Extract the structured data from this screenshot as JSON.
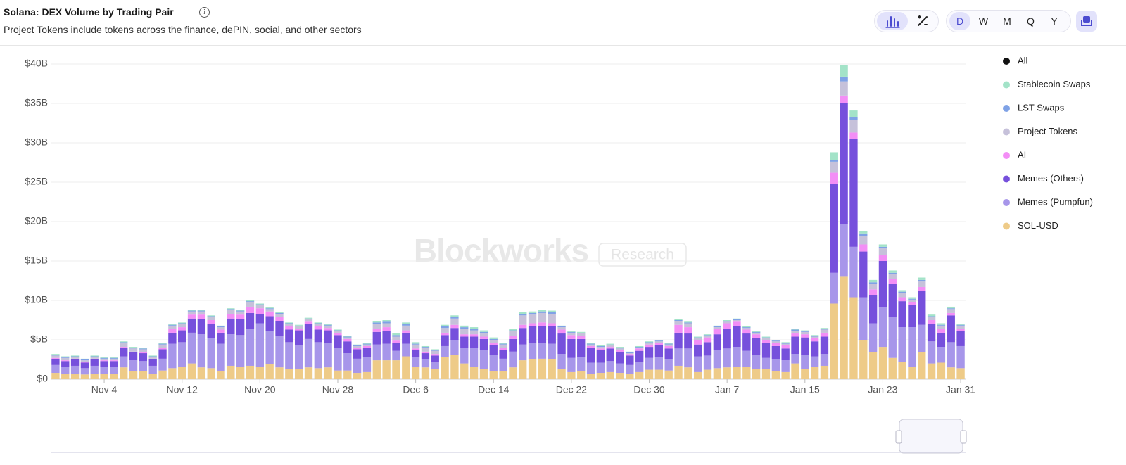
{
  "header": {
    "title": "Solana: DEX Volume by Trading Pair",
    "subtitle": "Project Tokens include tokens across the finance, dePIN, social, and other sectors"
  },
  "controls": {
    "periods": [
      "D",
      "W",
      "M",
      "Q",
      "Y"
    ],
    "selected_period": "D"
  },
  "chart_data": {
    "type": "stacked_bar",
    "watermark": "Blockworks",
    "watermark_tag": "Research",
    "total_legend": "All",
    "total_legend_color": "#111111",
    "categories": [
      null,
      null,
      null,
      null,
      null,
      "Nov 4",
      null,
      null,
      null,
      null,
      null,
      null,
      null,
      "Nov 12",
      null,
      null,
      null,
      null,
      null,
      null,
      null,
      "Nov 20",
      null,
      null,
      null,
      null,
      null,
      null,
      null,
      "Nov 28",
      null,
      null,
      null,
      null,
      null,
      null,
      null,
      "Dec 6",
      null,
      null,
      null,
      null,
      null,
      null,
      null,
      "Dec 14",
      null,
      null,
      null,
      null,
      null,
      null,
      null,
      "Dec 22",
      null,
      null,
      null,
      null,
      null,
      null,
      null,
      "Dec 30",
      null,
      null,
      null,
      null,
      null,
      null,
      null,
      "Jan 7",
      null,
      null,
      null,
      null,
      null,
      null,
      null,
      "Jan 15",
      null,
      null,
      null,
      null,
      null,
      null,
      null,
      "Jan 23",
      null,
      null,
      null,
      null,
      null,
      null,
      null,
      "Jan 31"
    ],
    "ylim": [
      0,
      40
    ],
    "yticks": [
      {
        "value": 0,
        "label": "$0"
      },
      {
        "value": 5,
        "label": "$5B"
      },
      {
        "value": 10,
        "label": "$10B"
      },
      {
        "value": 15,
        "label": "$15B"
      },
      {
        "value": 20,
        "label": "$20B"
      },
      {
        "value": 25,
        "label": "$25B"
      },
      {
        "value": 30,
        "label": "$30B"
      },
      {
        "value": 35,
        "label": "$35B"
      },
      {
        "value": 40,
        "label": "$40B"
      }
    ],
    "grid": true,
    "legend": "right",
    "series": [
      {
        "name": "Stablecoin Swaps",
        "color": "#a3e3c8",
        "values": [
          0.1,
          0.1,
          0.1,
          0.1,
          0.1,
          0.1,
          0.1,
          0.1,
          0.1,
          0.1,
          0.1,
          0.1,
          0.1,
          0.1,
          0.1,
          0.1,
          0.1,
          0.1,
          0.1,
          0.1,
          0.1,
          0.1,
          0.1,
          0.1,
          0.1,
          0.1,
          0.1,
          0.1,
          0.1,
          0.1,
          0.1,
          0.1,
          0.1,
          0.2,
          0.2,
          0.2,
          0.2,
          0.2,
          0.1,
          0.1,
          0.2,
          0.2,
          0.2,
          0.2,
          0.2,
          0.2,
          0.1,
          0.2,
          0.2,
          0.2,
          0.2,
          0.2,
          0.1,
          0.1,
          0.1,
          0.1,
          0.1,
          0.1,
          0.1,
          0.1,
          0.1,
          0.1,
          0.1,
          0.1,
          0.1,
          0.1,
          0.1,
          0.1,
          0.1,
          0.1,
          0.1,
          0.1,
          0.1,
          0.1,
          0.1,
          0.1,
          0.1,
          0.1,
          0.1,
          0.1,
          1.0,
          1.5,
          0.8,
          0.3,
          0.3,
          0.3,
          0.3,
          0.2,
          0.2,
          0.3,
          0.2,
          0.2,
          0.2,
          0.1
        ]
      },
      {
        "name": "LST Swaps",
        "color": "#7fa2e6",
        "values": [
          0.1,
          0.1,
          0.1,
          0.1,
          0.1,
          0.1,
          0.1,
          0.1,
          0.1,
          0.1,
          0.1,
          0.1,
          0.1,
          0.1,
          0.1,
          0.1,
          0.1,
          0.1,
          0.1,
          0.1,
          0.1,
          0.1,
          0.1,
          0.1,
          0.1,
          0.1,
          0.1,
          0.1,
          0.1,
          0.1,
          0.1,
          0.1,
          0.1,
          0.2,
          0.2,
          0.2,
          0.2,
          0.1,
          0.1,
          0.1,
          0.2,
          0.2,
          0.2,
          0.2,
          0.2,
          0.1,
          0.1,
          0.1,
          0.2,
          0.2,
          0.2,
          0.2,
          0.1,
          0.1,
          0.1,
          0.1,
          0.1,
          0.1,
          0.1,
          0.1,
          0.1,
          0.1,
          0.1,
          0.1,
          0.1,
          0.1,
          0.1,
          0.1,
          0.1,
          0.1,
          0.1,
          0.1,
          0.1,
          0.1,
          0.1,
          0.1,
          0.2,
          0.1,
          0.1,
          0.1,
          0.2,
          0.6,
          0.4,
          0.3,
          0.2,
          0.2,
          0.2,
          0.2,
          0.1,
          0.2,
          0.1,
          0.1,
          0.1,
          0.1
        ]
      },
      {
        "name": "Project Tokens",
        "color": "#c6c1da",
        "values": [
          0.3,
          0.3,
          0.2,
          0.2,
          0.2,
          0.2,
          0.2,
          0.5,
          0.4,
          0.4,
          0.2,
          0.4,
          0.4,
          0.4,
          0.4,
          0.4,
          0.4,
          0.3,
          0.5,
          0.4,
          0.6,
          0.4,
          0.3,
          0.4,
          0.3,
          0.3,
          0.3,
          0.3,
          0.3,
          0.2,
          0.2,
          0.2,
          0.2,
          0.6,
          0.5,
          0.5,
          0.6,
          0.5,
          0.5,
          0.4,
          0.6,
          0.8,
          0.7,
          0.5,
          0.4,
          0.4,
          0.4,
          0.6,
          1.2,
          1.1,
          1.2,
          1.2,
          0.3,
          0.3,
          0.3,
          0.2,
          0.2,
          0.2,
          0.2,
          0.1,
          0.1,
          0.2,
          0.2,
          0.2,
          0.5,
          0.5,
          0.2,
          0.2,
          0.2,
          0.2,
          0.2,
          0.2,
          0.2,
          0.2,
          0.2,
          0.2,
          0.3,
          0.3,
          0.2,
          0.4,
          1.4,
          1.8,
          1.6,
          1.1,
          0.7,
          0.8,
          0.6,
          0.5,
          0.3,
          0.7,
          0.4,
          0.4,
          0.5,
          0.4
        ]
      },
      {
        "name": "AI",
        "color": "#f38ef6",
        "values": [
          0.1,
          0.1,
          0.1,
          0.1,
          0.1,
          0.1,
          0.1,
          0.1,
          0.1,
          0.1,
          0.1,
          0.2,
          0.5,
          0.4,
          0.5,
          0.6,
          0.5,
          0.4,
          0.6,
          0.6,
          0.8,
          0.7,
          0.6,
          0.5,
          0.4,
          0.2,
          0.3,
          0.4,
          0.3,
          0.3,
          0.3,
          0.2,
          0.2,
          0.4,
          0.5,
          0.3,
          0.3,
          0.2,
          0.2,
          0.2,
          0.3,
          0.4,
          0.3,
          0.3,
          0.3,
          0.3,
          0.3,
          0.4,
          0.4,
          0.4,
          0.5,
          0.4,
          0.5,
          0.5,
          0.4,
          0.2,
          0.2,
          0.2,
          0.2,
          0.2,
          0.3,
          0.3,
          0.3,
          0.3,
          1.0,
          0.8,
          0.6,
          0.6,
          0.7,
          0.7,
          0.6,
          0.5,
          0.5,
          0.4,
          0.4,
          0.4,
          0.4,
          0.4,
          0.4,
          0.5,
          1.4,
          1.0,
          0.8,
          0.9,
          0.7,
          0.8,
          0.6,
          0.5,
          0.4,
          0.5,
          0.5,
          0.5,
          0.3,
          0.3
        ]
      },
      {
        "name": "Memes (Others)",
        "color": "#7650dc",
        "values": [
          0.8,
          0.7,
          0.8,
          0.7,
          0.8,
          0.7,
          0.7,
          1.1,
          1.0,
          1.0,
          0.8,
          1.2,
          1.4,
          1.5,
          1.8,
          1.9,
          1.8,
          1.4,
          2.0,
          2.0,
          2.0,
          1.2,
          1.9,
          1.9,
          1.6,
          1.9,
          1.9,
          1.6,
          1.6,
          1.6,
          1.5,
          1.2,
          1.2,
          1.6,
          1.6,
          1.0,
          1.4,
          0.9,
          0.8,
          0.8,
          1.4,
          1.5,
          1.4,
          1.4,
          1.4,
          1.2,
          1.1,
          1.6,
          2.1,
          2.1,
          2.1,
          2.2,
          2.6,
          2.4,
          2.3,
          1.9,
          1.6,
          1.6,
          1.5,
          1.2,
          1.4,
          1.4,
          1.5,
          1.4,
          2.0,
          1.9,
          1.5,
          1.7,
          2.0,
          2.5,
          2.6,
          2.2,
          2.1,
          1.9,
          1.7,
          1.5,
          2.2,
          2.2,
          1.9,
          2.2,
          11.3,
          15.3,
          13.7,
          5.8,
          3.6,
          5.9,
          4.2,
          3.3,
          2.8,
          4.3,
          2.2,
          1.8,
          3.4,
          1.9
        ]
      },
      {
        "name": "Memes (Pumpfun)",
        "color": "#a796ea",
        "values": [
          1.0,
          0.9,
          1.0,
          0.8,
          1.0,
          0.9,
          0.9,
          1.4,
          1.4,
          1.3,
          1.0,
          1.5,
          3.1,
          3.1,
          3.9,
          4.2,
          3.8,
          3.5,
          4.0,
          4.0,
          4.7,
          5.5,
          4.2,
          4.0,
          3.4,
          3.0,
          3.6,
          3.3,
          3.1,
          2.9,
          2.2,
          1.8,
          1.9,
          2.0,
          2.1,
          1.2,
          1.6,
          1.2,
          1.0,
          0.9,
          1.4,
          1.9,
          2.0,
          2.4,
          2.4,
          2.1,
          1.6,
          2.0,
          2.0,
          2.1,
          2.0,
          2.0,
          1.9,
          1.8,
          1.8,
          1.4,
          1.3,
          1.4,
          1.2,
          1.1,
          1.3,
          1.5,
          1.6,
          1.4,
          2.2,
          2.4,
          2.0,
          1.8,
          2.3,
          2.4,
          2.5,
          2.0,
          1.8,
          1.4,
          1.5,
          1.5,
          1.2,
          1.8,
          1.3,
          1.5,
          3.9,
          6.7,
          6.4,
          5.4,
          3.7,
          5.0,
          5.2,
          4.4,
          5.0,
          3.5,
          2.8,
          2.0,
          3.2,
          2.8
        ]
      },
      {
        "name": "SOL-USD",
        "color": "#eecb88",
        "values": [
          0.8,
          0.7,
          0.7,
          0.6,
          0.7,
          0.7,
          0.7,
          1.5,
          1.0,
          1.0,
          0.7,
          1.1,
          1.4,
          1.6,
          2.0,
          1.5,
          1.4,
          1.0,
          1.7,
          1.6,
          1.7,
          1.6,
          1.9,
          1.5,
          1.3,
          1.3,
          1.5,
          1.4,
          1.5,
          1.1,
          1.1,
          0.8,
          0.9,
          2.4,
          2.4,
          2.4,
          2.9,
          1.6,
          1.5,
          1.3,
          2.8,
          3.1,
          2.0,
          1.6,
          1.3,
          1.0,
          1.0,
          1.5,
          2.4,
          2.5,
          2.6,
          2.5,
          1.3,
          0.9,
          1.0,
          0.7,
          0.8,
          0.9,
          0.8,
          0.7,
          0.9,
          1.2,
          1.2,
          1.1,
          1.7,
          1.5,
          0.9,
          1.2,
          1.4,
          1.5,
          1.6,
          1.6,
          1.3,
          1.3,
          1.0,
          0.9,
          2.0,
          1.3,
          1.6,
          1.7,
          9.6,
          13.0,
          10.4,
          5.0,
          3.4,
          4.1,
          2.7,
          2.2,
          1.6,
          3.4,
          2.0,
          2.1,
          1.5,
          1.4
        ]
      }
    ]
  }
}
